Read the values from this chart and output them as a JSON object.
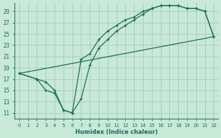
{
  "xlabel": "Humidex (Indice chaleur)",
  "background_color": "#c8e8d8",
  "grid_color": "#a8cfc0",
  "line_color": "#1a6b5a",
  "xlim": [
    -0.5,
    22.5
  ],
  "ylim": [
    10.0,
    30.5
  ],
  "xticks": [
    0,
    1,
    2,
    3,
    4,
    5,
    6,
    7,
    8,
    9,
    10,
    11,
    12,
    13,
    14,
    15,
    16,
    17,
    18,
    19,
    20,
    21,
    22
  ],
  "yticks": [
    11,
    13,
    15,
    17,
    19,
    21,
    23,
    25,
    27,
    29
  ],
  "line1_x": [
    0,
    2,
    3,
    4,
    5,
    6,
    7,
    8,
    9,
    10,
    11,
    12,
    13,
    14,
    15,
    16,
    17,
    18,
    19,
    20,
    21,
    22
  ],
  "line1_y": [
    18.0,
    17.0,
    15.0,
    14.5,
    11.5,
    11.0,
    20.5,
    21.5,
    24.0,
    25.5,
    26.5,
    27.5,
    28.0,
    29.0,
    29.5,
    30.0,
    30.0,
    30.0,
    29.5,
    29.5,
    29.0,
    24.5
  ],
  "line2_x": [
    0,
    2,
    3,
    4,
    5,
    6,
    7,
    8,
    9,
    10,
    11,
    12,
    13,
    14,
    15,
    16,
    17,
    18,
    19,
    20,
    21,
    22
  ],
  "line2_y": [
    18.0,
    17.0,
    16.5,
    15.0,
    11.5,
    11.0,
    13.5,
    19.5,
    22.5,
    24.0,
    25.5,
    26.5,
    27.5,
    28.5,
    29.5,
    30.0,
    30.0,
    30.0,
    29.5,
    29.5,
    29.0,
    24.5
  ],
  "line3_x": [
    0,
    22
  ],
  "line3_y": [
    18.0,
    24.5
  ]
}
